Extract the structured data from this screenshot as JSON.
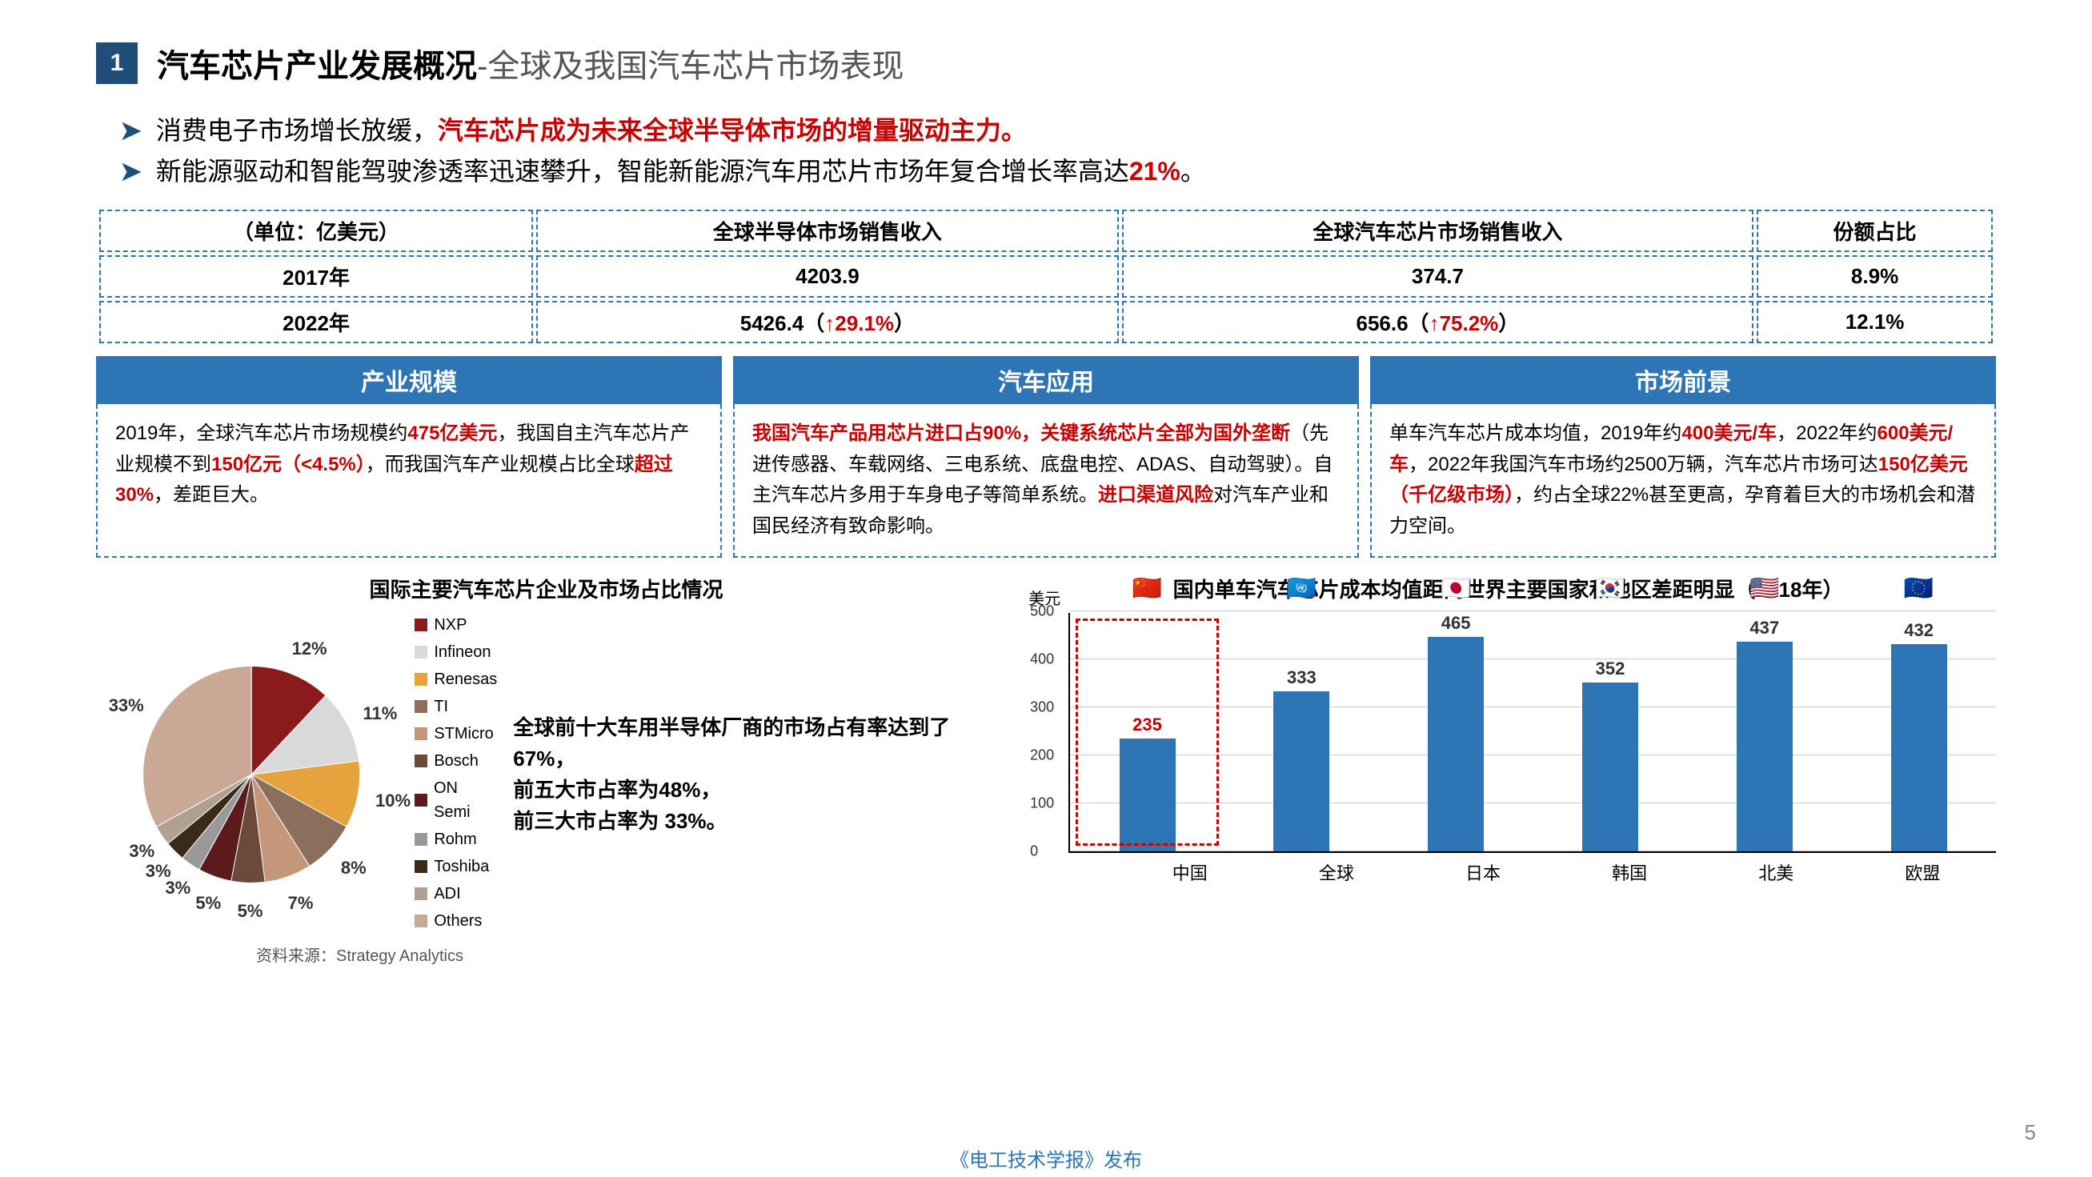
{
  "header": {
    "num": "1",
    "main": "汽车芯片产业发展概况",
    "sub": "-全球及我国汽车芯片市场表现"
  },
  "bullets": {
    "b1a": "消费电子市场增长放缓，",
    "b1b": "汽车芯片成为未来全球半导体市场的增量驱动主力。",
    "b2a": "新能源驱动和智能驾驶渗透率迅速攀升，智能新能源汽车用芯片市场年复合增长率高达",
    "b2b": "21%",
    "b2c": "。"
  },
  "table": {
    "h1": "（单位：亿美元）",
    "h2": "全球半导体市场销售收入",
    "h3": "全球汽车芯片市场销售收入",
    "h4": "份额占比",
    "r1": {
      "c1": "2017年",
      "c2": "4203.9",
      "c3": "374.7",
      "c4": "8.9%"
    },
    "r2": {
      "c1": "2022年",
      "c2a": "5426.4（",
      "c2b": "↑29.1%",
      "c2c": "）",
      "c3a": "656.6（",
      "c3b": "↑75.2%",
      "c3c": "）",
      "c4": "12.1%"
    }
  },
  "cols": {
    "a": {
      "title": "产业规模",
      "t1": "2019年，全球汽车芯片市场规模约",
      "t2": "475亿美元",
      "t3": "，我国自主汽车芯片产业规模不到",
      "t4": "150亿元（<4.5%）",
      "t5": "，而我国汽车产业规模占比全球",
      "t6": "超过30%",
      "t7": "，差距巨大。"
    },
    "b": {
      "title": "汽车应用",
      "t1": "我国汽车产品用芯片进口占90%，关键系统芯片全部为国外垄断",
      "t2": "（先进传感器、车载网络、三电系统、底盘电控、ADAS、自动驾驶）。自主汽车芯片多用于车身电子等简单系统。",
      "t3": "进口渠道风险",
      "t4": "对汽车产业和国民经济有致命影响。"
    },
    "c": {
      "title": "市场前景",
      "t1": "单车汽车芯片成本均值，2019年约",
      "t2": "400美元/车",
      "t3": "，2022年约",
      "t4": "600美元/车",
      "t5": "，2022年我国汽车市场约2500万辆，汽车芯片市场可达",
      "t6": "150亿美元（千亿级市场）",
      "t7": "，约占全球22%甚至更高，孕育着巨大的市场机会和潜力空间。"
    }
  },
  "pie": {
    "title": "国际主要汽车芯片企业及市场占比情况",
    "slices": [
      {
        "name": "NXP",
        "value": 12,
        "color": "#8b1a1a"
      },
      {
        "name": "Infineon",
        "value": 11,
        "color": "#d9d9d9"
      },
      {
        "name": "Renesas",
        "value": 10,
        "color": "#e6a23c"
      },
      {
        "name": "TI",
        "value": 8,
        "color": "#8b6f5c"
      },
      {
        "name": "STMicro",
        "value": 7,
        "color": "#c5977a"
      },
      {
        "name": "Bosch",
        "value": 5,
        "color": "#6b4a3a"
      },
      {
        "name": "ON Semi",
        "value": 5,
        "color": "#5c1a1a"
      },
      {
        "name": "Rohm",
        "value": 3,
        "color": "#999999"
      },
      {
        "name": "Toshiba",
        "value": 3,
        "color": "#3a2a1a"
      },
      {
        "name": "ADI",
        "value": 3,
        "color": "#b0a090"
      },
      {
        "name": "Others",
        "value": 33,
        "color": "#c9a896"
      }
    ],
    "comment1": "全球前十大车用半导体厂商的市场占有率达到了67%，",
    "comment2": "前五大市占率为48%，",
    "comment3": "前三大市占率为 33%。",
    "source": "资料来源：Strategy Analytics"
  },
  "bar": {
    "title": "国内单车汽车芯片成本均值距离世界主要国家和地区差距明显（2018年）",
    "unit": "美元",
    "ylim": 500,
    "yticks": [
      0,
      100,
      200,
      300,
      400,
      500
    ],
    "items": [
      {
        "label": "中国",
        "value": 235,
        "flag": "🇨🇳",
        "highlight": true,
        "val_color": "#c00",
        "color": "#2e75b6"
      },
      {
        "label": "全球",
        "value": 333,
        "flag": "🇺🇳",
        "highlight": false,
        "val_color": "#333",
        "color": "#2e75b6"
      },
      {
        "label": "日本",
        "value": 465,
        "flag": "🇯🇵",
        "highlight": false,
        "val_color": "#333",
        "color": "#2e75b6"
      },
      {
        "label": "韩国",
        "value": 352,
        "flag": "🇰🇷",
        "highlight": false,
        "val_color": "#333",
        "color": "#2e75b6"
      },
      {
        "label": "北美",
        "value": 437,
        "flag": "🇺🇸",
        "highlight": false,
        "val_color": "#333",
        "color": "#2e75b6"
      },
      {
        "label": "欧盟",
        "value": 432,
        "flag": "🇪🇺",
        "highlight": false,
        "val_color": "#333",
        "color": "#2e75b6"
      }
    ]
  },
  "footer": {
    "pub": "《电工技术学报》发布",
    "page": "5"
  }
}
